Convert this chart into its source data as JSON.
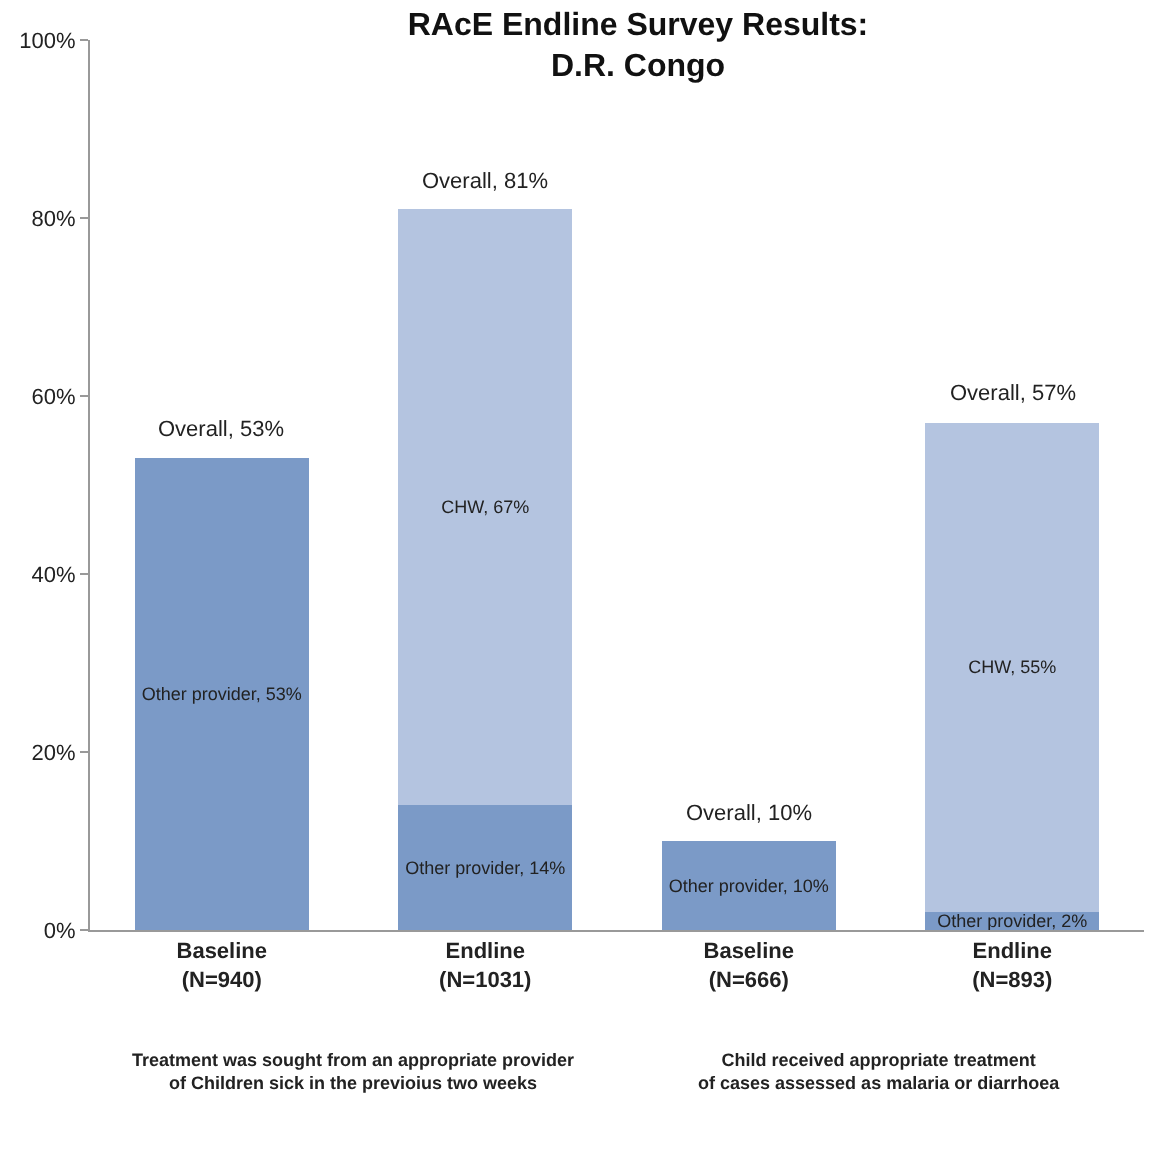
{
  "chart_data": {
    "type": "bar",
    "stacked": true,
    "title": "RAcE Endline Survey Results:\nD.R. Congo",
    "categories": [
      "Baseline\n(N=940)",
      "Endline\n(N=1031)",
      "Baseline\n(N=666)",
      "Endline\n(N=893)"
    ],
    "series": [
      {
        "color": "#7b9ac7",
        "values": [
          53,
          14,
          10,
          2
        ],
        "value_labels": [
          "Other provider, 53%",
          "Other provider, 14%",
          "Other provider, 10%",
          "Other provider, 2%"
        ]
      },
      {
        "color": "#b4c4e0",
        "values": [
          null,
          67,
          null,
          55
        ],
        "value_labels": [
          null,
          "CHW, 67%",
          null,
          "CHW, 55%"
        ]
      }
    ],
    "totals": [
      "Overall, 53%",
      "Overall, 81%",
      "Overall, 10%",
      "Overall, 57%"
    ],
    "ylim": [
      0,
      100
    ],
    "yticks": [
      {
        "value": 0,
        "label": "0%"
      },
      {
        "value": 20,
        "label": "20%"
      },
      {
        "value": 40,
        "label": "40%"
      },
      {
        "value": 60,
        "label": "60%"
      },
      {
        "value": 80,
        "label": "80%"
      },
      {
        "value": 100,
        "label": "100%"
      }
    ],
    "grid": false,
    "legend": false,
    "annotations": [
      "Treatment was sought from an appropriate provider\nof Children sick in the previoius two weeks",
      "Child received appropriate treatment\nof cases assessed as malaria or diarrhoea"
    ]
  }
}
